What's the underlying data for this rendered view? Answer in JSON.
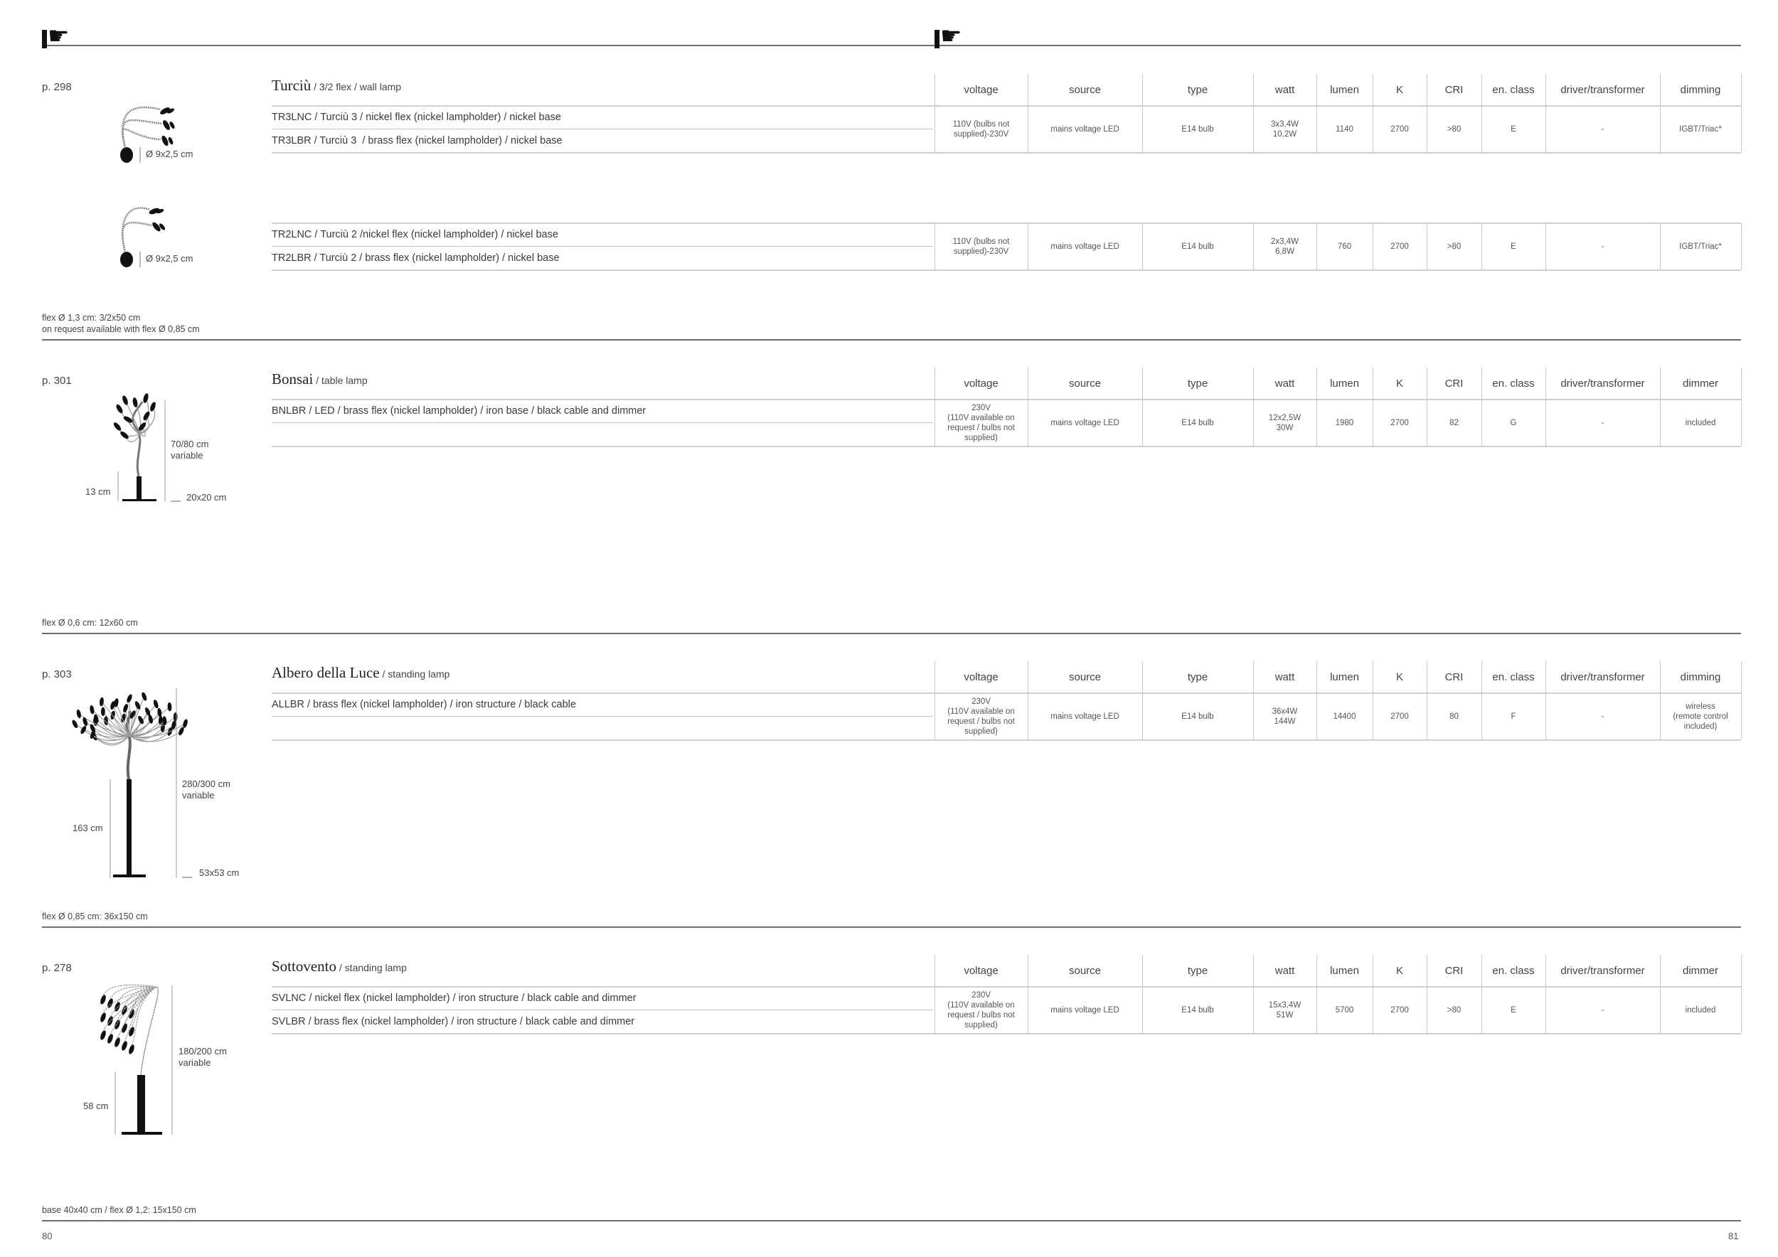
{
  "header": {
    "icon_left": "pointing-hand-icon",
    "icon_right": "pointing-hand-icon"
  },
  "sections": [
    {
      "page_ref": "p. 298",
      "title": "Turciù",
      "subtitle": " / 3/2 flex / wall lamp",
      "headers": [
        "voltage",
        "source",
        "type",
        "watt",
        "lumen",
        "K",
        "CRI",
        "en. class",
        "driver/transformer",
        "dimming"
      ],
      "tables": [
        {
          "items": [
            "TR3LNC / Turciù 3 / nickel flex (nickel lampholder) / nickel base",
            "TR3LBR / Turciù 3  / brass flex (nickel lampholder) / nickel base"
          ],
          "specs": [
            "110V (bulbs not\nsupplied)-230V",
            "mains voltage LED",
            "E14 bulb",
            "3x3,4W\n10,2W",
            "1140",
            "2700",
            ">80",
            "E",
            "-",
            "IGBT/Triac*"
          ]
        },
        {
          "items": [
            "TR2LNC / Turciù 2 /nickel flex (nickel lampholder) / nickel base",
            "TR2LBR / Turciù 2 / brass flex (nickel lampholder) / nickel base"
          ],
          "specs": [
            "110V (bulbs not\nsupplied)-230V",
            "mains voltage LED",
            "E14 bulb",
            "2x3,4W\n6,8W",
            "760",
            "2700",
            ">80",
            "E",
            "-",
            "IGBT/Triac*"
          ]
        }
      ],
      "dims": [
        "Ø 9x2,5 cm",
        "Ø 9x2,5 cm"
      ],
      "footnote": [
        "flex Ø 1,3 cm: 3/2x50 cm",
        "on request available with flex Ø 0,85 cm"
      ]
    },
    {
      "page_ref": "p. 301",
      "title": "Bonsai",
      "subtitle": " / table lamp",
      "headers": [
        "voltage",
        "source",
        "type",
        "watt",
        "lumen",
        "K",
        "CRI",
        "en. class",
        "driver/transformer",
        "dimmer"
      ],
      "tables": [
        {
          "items": [
            "BNLBR / LED / brass flex (nickel lampholder) / iron base / black cable and dimmer",
            ""
          ],
          "specs": [
            "230V\n(110V available on\nrequest / bulbs not\nsupplied)",
            "mains voltage LED",
            "E14 bulb",
            "12x2,5W\n30W",
            "1980",
            "2700",
            "82",
            "G",
            "-",
            "included"
          ]
        }
      ],
      "dims": [
        "70/80 cm\nvariable",
        "13 cm",
        "20x20 cm"
      ],
      "footnote": [
        "flex Ø 0,6 cm: 12x60 cm"
      ]
    },
    {
      "page_ref": "p. 303",
      "title": "Albero della Luce",
      "subtitle": " / standing lamp",
      "headers": [
        "voltage",
        "source",
        "type",
        "watt",
        "lumen",
        "K",
        "CRI",
        "en. class",
        "driver/transformer",
        "dimming"
      ],
      "tables": [
        {
          "items": [
            "ALLBR / brass flex (nickel lampholder) / iron structure / black cable",
            ""
          ],
          "specs": [
            "230V\n(110V available on\nrequest / bulbs not\nsupplied)",
            "mains voltage LED",
            "E14 bulb",
            "36x4W\n144W",
            "14400",
            "2700",
            "80",
            "F",
            "-",
            "wireless\n(remote control\nincluded)"
          ]
        }
      ],
      "dims": [
        "280/300 cm\nvariable",
        "163 cm",
        "53x53 cm"
      ],
      "footnote": [
        "flex Ø 0,85 cm: 36x150 cm"
      ]
    },
    {
      "page_ref": "p. 278",
      "title": "Sottovento",
      "subtitle": " / standing lamp",
      "headers": [
        "voltage",
        "source",
        "type",
        "watt",
        "lumen",
        "K",
        "CRI",
        "en. class",
        "driver/transformer",
        "dimmer"
      ],
      "tables": [
        {
          "items": [
            "SVLNC / nickel flex (nickel lampholder) / iron structure / black cable and dimmer",
            "SVLBR / brass flex (nickel lampholder) / iron structure / black cable and dimmer"
          ],
          "specs": [
            "230V\n(110V available on\nrequest / bulbs not\nsupplied)",
            "mains voltage LED",
            "E14 bulb",
            "15x3,4W\n51W",
            "5700",
            "2700",
            ">80",
            "E",
            "-",
            "included"
          ]
        }
      ],
      "dims": [
        "180/200 cm\nvariable",
        "58 cm"
      ],
      "footnote": [
        "base 40x40 cm / flex Ø 1,2: 15x150 cm"
      ]
    }
  ],
  "footer": {
    "page_left": "80",
    "page_right": "81"
  }
}
